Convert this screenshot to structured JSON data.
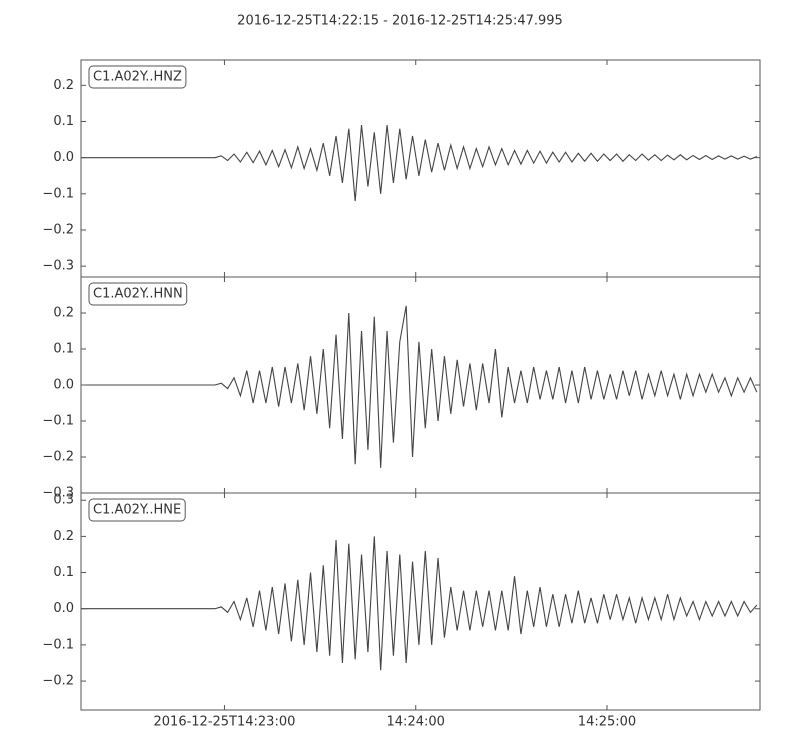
{
  "title": "2016-12-25T14:22:15  -  2016-12-25T14:25:47.995",
  "chart_data": [
    {
      "type": "line",
      "label": "C1.A02Y..HNZ",
      "color": "#444444",
      "xlim": [
        0,
        212.995
      ],
      "ylim": [
        -0.33,
        0.27
      ],
      "yticks": [
        {
          "value": -0.3,
          "label": "−0.3"
        },
        {
          "value": -0.2,
          "label": "−0.2"
        },
        {
          "value": -0.1,
          "label": "−0.1"
        },
        {
          "value": 0,
          "label": "0.0"
        },
        0.1,
        0.2
      ],
      "x": [
        0,
        42,
        44,
        46,
        48,
        50,
        52,
        54,
        56,
        58,
        60,
        62,
        64,
        66,
        68,
        70,
        72,
        74,
        76,
        78,
        80,
        82,
        84,
        86,
        88,
        90,
        92,
        94,
        96,
        98,
        100,
        102,
        104,
        106,
        108,
        110,
        112,
        114,
        116,
        118,
        120,
        122,
        124,
        126,
        128,
        130,
        132,
        134,
        136,
        138,
        140,
        142,
        144,
        146,
        148,
        150,
        152,
        154,
        156,
        158,
        160,
        162,
        164,
        166,
        168,
        170,
        172,
        174,
        176,
        178,
        180,
        182,
        184,
        186,
        188,
        190,
        192,
        194,
        196,
        198,
        200,
        202,
        204,
        206,
        208,
        210,
        212
      ],
      "values": [
        0,
        0,
        0.005,
        -0.008,
        0.01,
        -0.012,
        0.015,
        -0.014,
        0.018,
        -0.02,
        0.02,
        -0.025,
        0.022,
        -0.028,
        0.03,
        -0.03,
        0.025,
        -0.035,
        0.04,
        -0.05,
        0.06,
        -0.07,
        0.08,
        -0.12,
        0.09,
        -0.08,
        0.07,
        -0.1,
        0.09,
        -0.07,
        0.08,
        -0.06,
        0.06,
        -0.05,
        0.05,
        -0.04,
        0.04,
        -0.035,
        0.035,
        -0.03,
        0.03,
        -0.03,
        0.025,
        -0.025,
        0.03,
        -0.02,
        0.025,
        -0.02,
        0.02,
        -0.018,
        0.02,
        -0.015,
        0.018,
        -0.015,
        0.015,
        -0.012,
        0.015,
        -0.012,
        0.012,
        -0.01,
        0.012,
        -0.01,
        0.01,
        -0.008,
        0.01,
        -0.01,
        0.008,
        -0.008,
        0.01,
        -0.007,
        0.008,
        -0.008,
        0.007,
        -0.006,
        0.008,
        -0.006,
        0.006,
        -0.005,
        0.006,
        -0.005,
        0.005,
        -0.004,
        0.005,
        -0.004,
        0.004,
        -0.004,
        0.003
      ]
    },
    {
      "type": "line",
      "label": "C1.A02Y..HNN",
      "color": "#444444",
      "xlim": [
        0,
        212.995
      ],
      "ylim": [
        -0.3,
        0.3
      ],
      "yticks": [
        {
          "value": -0.3,
          "label": "−0.3"
        },
        {
          "value": -0.2,
          "label": "−0.2"
        },
        {
          "value": -0.1,
          "label": "−0.1"
        },
        {
          "value": 0,
          "label": "0.0"
        },
        0.1,
        0.2
      ],
      "x": [
        0,
        42,
        44,
        46,
        48,
        50,
        52,
        54,
        56,
        58,
        60,
        62,
        64,
        66,
        68,
        70,
        72,
        74,
        76,
        78,
        80,
        82,
        84,
        86,
        88,
        90,
        92,
        94,
        96,
        98,
        100,
        102,
        104,
        106,
        108,
        110,
        112,
        114,
        116,
        118,
        120,
        122,
        124,
        126,
        128,
        130,
        132,
        134,
        136,
        138,
        140,
        142,
        144,
        146,
        148,
        150,
        152,
        154,
        156,
        158,
        160,
        162,
        164,
        166,
        168,
        170,
        172,
        174,
        176,
        178,
        180,
        182,
        184,
        186,
        188,
        190,
        192,
        194,
        196,
        198,
        200,
        202,
        204,
        206,
        208,
        210,
        212
      ],
      "values": [
        0,
        0,
        0.005,
        -0.01,
        0.02,
        -0.03,
        0.04,
        -0.05,
        0.04,
        -0.05,
        0.05,
        -0.06,
        0.05,
        -0.05,
        0.06,
        -0.07,
        0.08,
        -0.08,
        0.1,
        -0.12,
        0.14,
        -0.15,
        0.2,
        -0.22,
        0.15,
        -0.18,
        0.19,
        -0.23,
        0.15,
        -0.16,
        0.12,
        0.22,
        -0.2,
        0.12,
        -0.12,
        0.1,
        -0.1,
        0.08,
        -0.08,
        0.07,
        -0.06,
        0.06,
        -0.07,
        0.06,
        -0.05,
        0.1,
        -0.09,
        0.05,
        -0.05,
        0.04,
        -0.05,
        0.05,
        -0.04,
        0.04,
        -0.04,
        0.05,
        -0.05,
        0.04,
        -0.05,
        0.05,
        -0.04,
        0.04,
        -0.04,
        0.03,
        -0.04,
        0.04,
        -0.03,
        0.04,
        -0.04,
        0.03,
        -0.03,
        0.04,
        -0.03,
        0.03,
        -0.04,
        0.03,
        -0.03,
        0.03,
        -0.02,
        0.03,
        -0.02,
        0.02,
        -0.03,
        0.02,
        -0.02,
        0.02,
        -0.02
      ]
    },
    {
      "type": "line",
      "label": "C1.A02Y..HNE",
      "color": "#444444",
      "xlim": [
        0,
        212.995
      ],
      "ylim": [
        -0.28,
        0.32
      ],
      "yticks": [
        {
          "value": -0.2,
          "label": "−0.2"
        },
        {
          "value": -0.1,
          "label": "−0.1"
        },
        {
          "value": 0,
          "label": "0.0"
        },
        0.1,
        0.2,
        0.3
      ],
      "xticks": [
        {
          "value": 45,
          "label": "2016-12-25T14:23:00"
        },
        {
          "value": 105,
          "label": "14:24:00"
        },
        {
          "value": 165,
          "label": "14:25:00"
        }
      ],
      "x": [
        0,
        42,
        44,
        46,
        48,
        50,
        52,
        54,
        56,
        58,
        60,
        62,
        64,
        66,
        68,
        70,
        72,
        74,
        76,
        78,
        80,
        82,
        84,
        86,
        88,
        90,
        92,
        94,
        96,
        98,
        100,
        102,
        104,
        106,
        108,
        110,
        112,
        114,
        116,
        118,
        120,
        122,
        124,
        126,
        128,
        130,
        132,
        134,
        136,
        138,
        140,
        142,
        144,
        146,
        148,
        150,
        152,
        154,
        156,
        158,
        160,
        162,
        164,
        166,
        168,
        170,
        172,
        174,
        176,
        178,
        180,
        182,
        184,
        186,
        188,
        190,
        192,
        194,
        196,
        198,
        200,
        202,
        204,
        206,
        208,
        210,
        212
      ],
      "values": [
        0,
        0,
        0.005,
        -0.01,
        0.02,
        -0.03,
        0.03,
        -0.05,
        0.05,
        -0.06,
        0.06,
        -0.07,
        0.07,
        -0.09,
        0.08,
        -0.1,
        0.1,
        -0.12,
        0.12,
        -0.13,
        0.19,
        -0.15,
        0.18,
        -0.14,
        0.15,
        -0.12,
        0.2,
        -0.17,
        0.16,
        -0.13,
        0.15,
        -0.15,
        0.13,
        -0.1,
        0.16,
        -0.1,
        0.14,
        -0.08,
        0.06,
        -0.06,
        0.05,
        -0.06,
        0.05,
        -0.05,
        0.05,
        -0.06,
        0.05,
        -0.06,
        0.09,
        -0.07,
        0.05,
        -0.05,
        0.06,
        -0.05,
        0.04,
        -0.05,
        0.04,
        -0.04,
        0.05,
        -0.04,
        0.03,
        -0.04,
        0.04,
        -0.03,
        0.04,
        -0.03,
        0.03,
        -0.04,
        0.03,
        -0.03,
        0.03,
        -0.03,
        0.04,
        -0.03,
        0.03,
        -0.02,
        0.02,
        -0.03,
        0.02,
        -0.02,
        0.02,
        -0.02,
        0.02,
        -0.02,
        0.02,
        -0.01,
        0.01
      ]
    }
  ]
}
